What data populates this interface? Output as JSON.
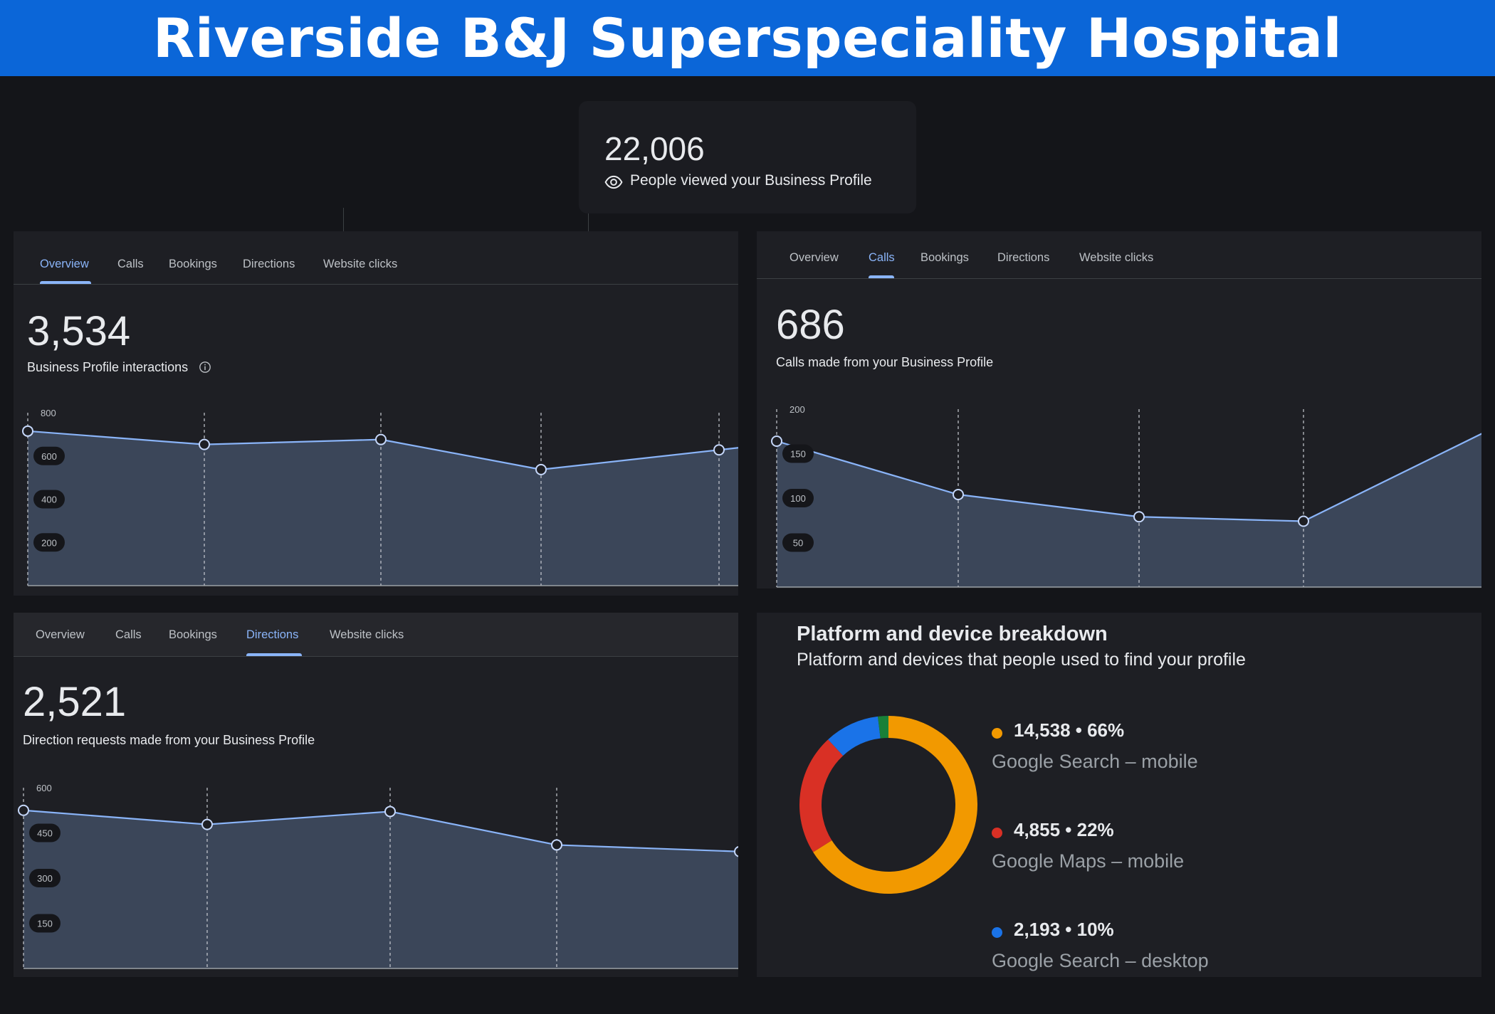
{
  "banner": {
    "title": "Riverside B&J Superspeciality Hospital"
  },
  "views_card": {
    "value": "22,006",
    "label": "People viewed your Business Profile"
  },
  "tab_labels": [
    "Overview",
    "Calls",
    "Bookings",
    "Directions",
    "Website clicks"
  ],
  "panels": {
    "overview": {
      "active_tab": "Overview",
      "value": "3,534",
      "label": "Business Profile interactions",
      "chart": {
        "y_ticks": [
          "800",
          "600",
          "400",
          "200"
        ],
        "ylim": [
          0,
          800
        ],
        "values": [
          715,
          653,
          676,
          537,
          628
        ]
      }
    },
    "calls": {
      "active_tab": "Calls",
      "value": "686",
      "label": "Calls made from your Business Profile",
      "chart": {
        "y_ticks": [
          "200",
          "150",
          "100",
          "50"
        ],
        "ylim": [
          0,
          200
        ],
        "values": [
          164,
          104,
          79,
          74,
          177
        ]
      }
    },
    "directions": {
      "active_tab": "Directions",
      "value": "2,521",
      "label": "Direction requests made from your Business Profile",
      "chart": {
        "y_ticks": [
          "600",
          "450",
          "300",
          "150"
        ],
        "ylim": [
          0,
          600
        ],
        "values": [
          525,
          478,
          521,
          410,
          388
        ]
      }
    }
  },
  "breakdown": {
    "title": "Platform and device breakdown",
    "subtitle": "Platform and devices that people used to find your profile",
    "chart_data": {
      "type": "pie",
      "slices": [
        {
          "value_text": "14,538 • 66%",
          "name": "Google Search – mobile",
          "value": 14538,
          "percent": 66,
          "color": "#f29900"
        },
        {
          "value_text": "4,855 • 22%",
          "name": "Google Maps – mobile",
          "value": 4855,
          "percent": 22,
          "color": "#d93025"
        },
        {
          "value_text": "2,193 • 10%",
          "name": "Google Search – desktop",
          "value": 2193,
          "percent": 10,
          "color": "#1a73e8"
        },
        {
          "value_text": "",
          "name": "",
          "value": 420,
          "percent": 2,
          "color": "#188038"
        }
      ]
    }
  },
  "colors": {
    "banner": "#0b66d8",
    "accent": "#8ab4f8",
    "area_fill": "#3b4659"
  }
}
